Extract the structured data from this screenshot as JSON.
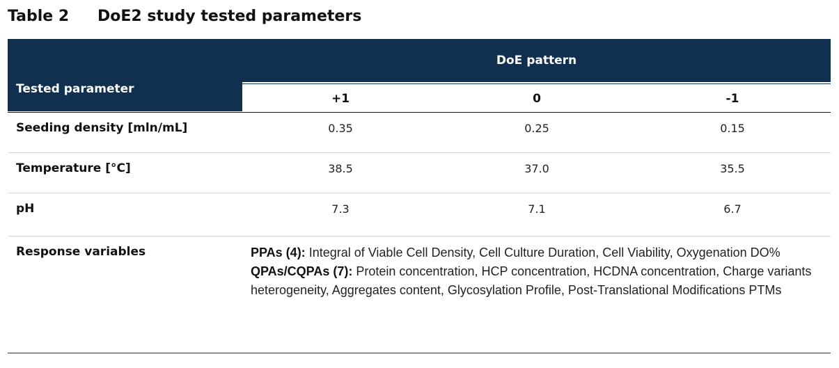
{
  "title": {
    "number": "Table 2",
    "text": "DoE2 study tested parameters"
  },
  "header": {
    "tested_parameter": "Tested parameter",
    "doe_pattern": "DoE pattern",
    "levels": [
      "+1",
      "0",
      "-1"
    ]
  },
  "rows": [
    {
      "param": "Seeding density [mln/mL]",
      "values": [
        "0.35",
        "0.25",
        "0.15"
      ]
    },
    {
      "param": "Temperature [°C]",
      "values": [
        "38.5",
        "37.0",
        "35.5"
      ]
    },
    {
      "param": "pH",
      "values": [
        "7.3",
        "7.1",
        "6.7"
      ]
    }
  ],
  "response": {
    "label": "Response variables",
    "ppa_label": "PPAs (4):",
    "ppa_text": " Integral of Viable Cell Density, Cell Culture Duration, Cell Viability, Oxygenation DO%",
    "qpa_label": "QPAs/CQPAs (7):",
    "qpa_text": " Protein concentration, HCP concentration, HCDNA concentration, Charge variants heterogeneity, Aggregates content, Glycosylation Profile, Post-Translational Modifications PTMs"
  }
}
